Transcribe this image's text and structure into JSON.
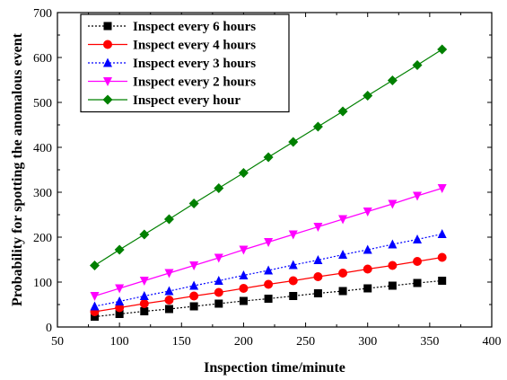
{
  "chart_data": {
    "type": "line",
    "title": "",
    "xlabel": "Inspection time/minute",
    "ylabel": "Probability for spotting the anomalous event",
    "xlim": [
      50,
      400
    ],
    "ylim": [
      0,
      700
    ],
    "xticks": [
      50,
      100,
      150,
      200,
      250,
      300,
      350,
      400
    ],
    "yticks": [
      0,
      100,
      200,
      300,
      400,
      500,
      600,
      700
    ],
    "grid": false,
    "legend_position": "top-left",
    "x": [
      80,
      100,
      120,
      140,
      160,
      180,
      200,
      220,
      240,
      260,
      280,
      300,
      320,
      340,
      360
    ],
    "series": [
      {
        "name": "Inspect every 6 hours",
        "color": "#000000",
        "marker": "square",
        "line_style": "dotted",
        "values": [
          23,
          29,
          35,
          40,
          46,
          52,
          58,
          63,
          69,
          75,
          80,
          86,
          92,
          98,
          103
        ]
      },
      {
        "name": "Inspect every 4 hours",
        "color": "#ff0000",
        "marker": "circle",
        "line_style": "solid",
        "values": [
          34,
          43,
          52,
          60,
          69,
          77,
          86,
          95,
          103,
          112,
          120,
          129,
          137,
          146,
          155
        ]
      },
      {
        "name": "Inspect every 3 hours",
        "color": "#0000ff",
        "marker": "triangle-up",
        "line_style": "dotted",
        "values": [
          46,
          57,
          69,
          80,
          92,
          103,
          115,
          126,
          138,
          149,
          161,
          172,
          184,
          195,
          207
        ]
      },
      {
        "name": "Inspect every 2 hours",
        "color": "#ff00ff",
        "marker": "triangle-down",
        "line_style": "solid",
        "values": [
          69,
          86,
          103,
          120,
          137,
          154,
          172,
          189,
          206,
          223,
          240,
          257,
          274,
          292,
          309
        ]
      },
      {
        "name": "Inspect every hour",
        "color": "#008000",
        "marker": "diamond",
        "line_style": "solid",
        "values": [
          137,
          172,
          206,
          240,
          275,
          309,
          343,
          378,
          412,
          446,
          480,
          515,
          549,
          583,
          618
        ]
      }
    ]
  }
}
